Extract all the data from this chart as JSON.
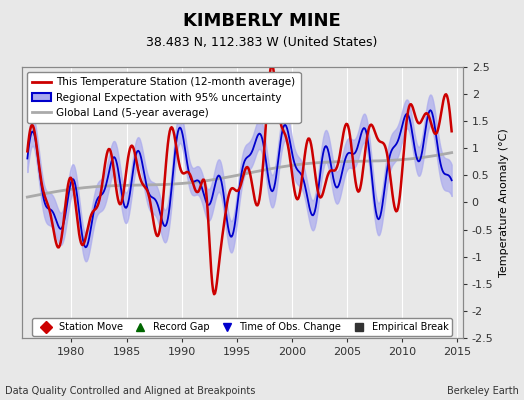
{
  "title": "KIMBERLY MINE",
  "subtitle": "38.483 N, 112.383 W (United States)",
  "ylabel": "Temperature Anomaly (°C)",
  "xlabel_left": "Data Quality Controlled and Aligned at Breakpoints",
  "xlabel_right": "Berkeley Earth",
  "xlim": [
    1975.5,
    2015.5
  ],
  "ylim": [
    -2.5,
    2.5
  ],
  "yticks": [
    -2.5,
    -2,
    -1.5,
    -1,
    -0.5,
    0,
    0.5,
    1,
    1.5,
    2,
    2.5
  ],
  "xticks": [
    1980,
    1985,
    1990,
    1995,
    2000,
    2005,
    2010,
    2015
  ],
  "bg_color": "#e8e8e8",
  "grid_color": "white",
  "station_color": "#cc0000",
  "regional_color": "#0000cc",
  "regional_fill_color": "#aaaaee",
  "global_color": "#aaaaaa",
  "legend_items": [
    {
      "label": "This Temperature Station (12-month average)",
      "color": "#cc0000",
      "lw": 2
    },
    {
      "label": "Regional Expectation with 95% uncertainty",
      "color": "#0000cc",
      "lw": 2
    },
    {
      "label": "Global Land (5-year average)",
      "color": "#aaaaaa",
      "lw": 2
    }
  ],
  "bottom_legend": [
    {
      "label": "Station Move",
      "marker": "D",
      "color": "#cc0000"
    },
    {
      "label": "Record Gap",
      "marker": "^",
      "color": "#006600"
    },
    {
      "label": "Time of Obs. Change",
      "marker": "v",
      "color": "#0000cc"
    },
    {
      "label": "Empirical Break",
      "marker": "s",
      "color": "#333333"
    }
  ]
}
